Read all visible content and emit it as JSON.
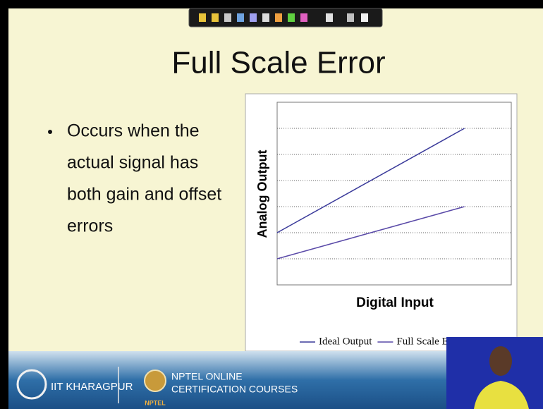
{
  "slide": {
    "title": "Full Scale Error",
    "bullet": [
      "Occurs when the",
      "actual signal has",
      "both gain and offset",
      "errors"
    ]
  },
  "chart_data": {
    "type": "line",
    "xlabel": "Digital Input",
    "ylabel": "Analog Output",
    "xlim": [
      0,
      10
    ],
    "ylim": [
      0,
      7
    ],
    "ygrid": [
      1,
      2,
      3,
      4,
      5,
      6
    ],
    "series": [
      {
        "name": "Ideal Output",
        "color": "#3a3a9a",
        "x": [
          0,
          8
        ],
        "values": [
          2,
          6
        ]
      },
      {
        "name": "Full Scale Error",
        "color": "#5a4aa8",
        "x": [
          0,
          8
        ],
        "values": [
          1,
          3
        ]
      }
    ]
  },
  "footer": {
    "institute": "IIT KHARAGPUR",
    "program": [
      "NPTEL ONLINE",
      "CERTIFICATION COURSES"
    ],
    "logo_text": "NPTEL"
  }
}
